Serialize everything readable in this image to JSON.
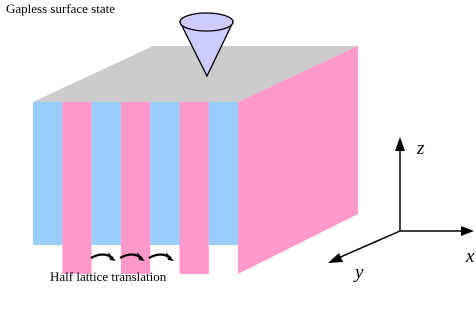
{
  "labels": {
    "surface_state": "Gapless surface state",
    "translation": "Half lattice translation"
  },
  "axes": {
    "z": "z",
    "x": "x",
    "y": "y"
  },
  "colors": {
    "blue_layer": "#99ccff",
    "pink_layer": "#ff99cc",
    "top_face": "#cccccc",
    "cone": "#ccccff",
    "outline": "#000000"
  },
  "layer_sequence": [
    "blue",
    "pink",
    "blue",
    "pink",
    "blue",
    "pink",
    "blue"
  ]
}
